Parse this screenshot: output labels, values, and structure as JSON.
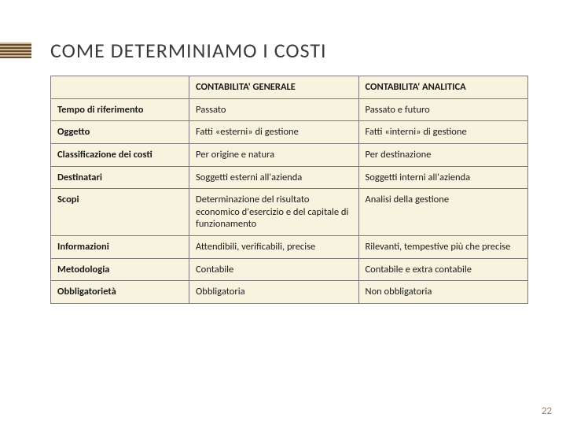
{
  "title": "COME DETERMINIAMO I COSTI",
  "page_number": "22",
  "colors": {
    "cell_bg": "#f8f3df",
    "border": "#7a7a7a",
    "title": "#3b3b3b",
    "accent_dark": "#6b4a2a",
    "accent_light": "#c9b899",
    "pagenum": "#9a8560"
  },
  "table": {
    "columns": [
      "",
      "CONTABILITA' GENERALE",
      "CONTABILITA' ANALITICA"
    ],
    "rows": [
      [
        "Tempo di riferimento",
        "Passato",
        "Passato e futuro"
      ],
      [
        "Oggetto",
        "Fatti «esterni» di gestione",
        "Fatti «interni» di gestione"
      ],
      [
        "Classificazione dei costi",
        "Per origine e natura",
        "Per destinazione"
      ],
      [
        "Destinatari",
        "Soggetti esterni all'azienda",
        "Soggetti interni all'azienda"
      ],
      [
        "Scopi",
        "Determinazione del risultato economico d'esercizio e del capitale di funzionamento",
        "Analisi della gestione"
      ],
      [
        "Informazioni",
        "Attendibili, verificabili, precise",
        "Rilevanti, tempestive più che precise"
      ],
      [
        "Metodologia",
        "Contabile",
        "Contabile e extra contabile"
      ],
      [
        "Obbligatorietà",
        "Obbligatoria",
        "Non obbligatoria"
      ]
    ]
  }
}
